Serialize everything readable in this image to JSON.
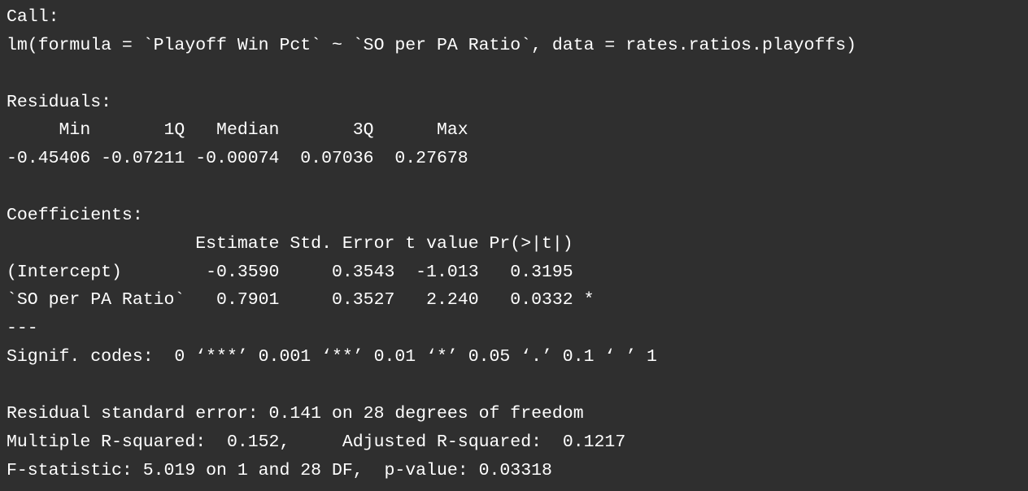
{
  "console": {
    "lines": [
      "Call:",
      "lm(formula = `Playoff Win Pct` ~ `SO per PA Ratio`, data = rates.ratios.playoffs)",
      "",
      "Residuals:",
      "     Min       1Q   Median       3Q      Max ",
      "-0.45406 -0.07211 -0.00074  0.07036  0.27678 ",
      "",
      "Coefficients:",
      "                  Estimate Std. Error t value Pr(>|t|)  ",
      "(Intercept)        -0.3590     0.3543  -1.013   0.3195  ",
      "`SO per PA Ratio`   0.7901     0.3527   2.240   0.0332 *",
      "---",
      "Signif. codes:  0 ‘***’ 0.001 ‘**’ 0.01 ‘*’ 0.05 ‘.’ 0.1 ‘ ’ 1",
      "",
      "Residual standard error: 0.141 on 28 degrees of freedom",
      "Multiple R-squared:  0.152,\tAdjusted R-squared:  0.1217 ",
      "F-statistic: 5.019 on 1 and 28 DF,  p-value: 0.03318"
    ]
  },
  "colors": {
    "background": "#2f2f2f",
    "text": "#ffffff"
  }
}
